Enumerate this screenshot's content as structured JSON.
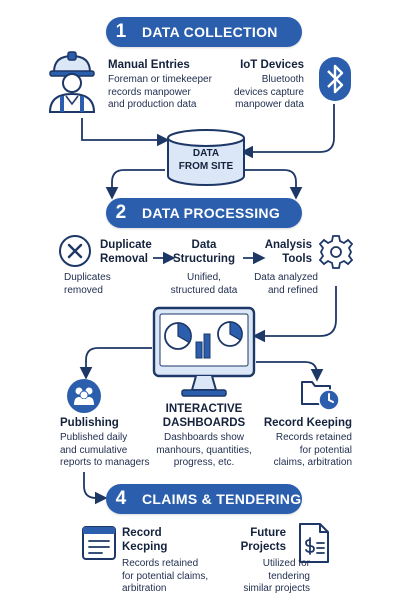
{
  "colors": {
    "primary": "#2b5fae",
    "dark": "#1d3766",
    "light": "#dbe7f7"
  },
  "section1": {
    "number": "1",
    "title": "DATA COLLECTION"
  },
  "manual": {
    "title": "Manual Entries",
    "line1": "Foreman or timekeeper",
    "line2": "records manpower",
    "line3": "and production data",
    "icon": "worker-icon"
  },
  "iot": {
    "title": "IoT Devices",
    "line1": "Bluetooth",
    "line2": "devices capture",
    "line3": "manpower data",
    "icon": "bluetooth-icon"
  },
  "database": {
    "line1": "DATA",
    "line2": "FROM SITE",
    "icon": "database-icon"
  },
  "section2": {
    "number": "2",
    "title": "DATA PROCESSING"
  },
  "duplicate": {
    "title1": "Duplicate",
    "title2": "Removal",
    "desc1": "Duplicates",
    "desc2": "removed",
    "icon": "x-circle-icon"
  },
  "structuring": {
    "title1": "Data",
    "title2": "Structuring",
    "desc1": "Unified,",
    "desc2": "structured data"
  },
  "analysis": {
    "title1": "Analysis",
    "title2": "Tools",
    "desc1": "Data analyzed",
    "desc2": "and refined",
    "icon": "gear-icon"
  },
  "monitor": {
    "icon": "dashboard-monitor-icon"
  },
  "publishing": {
    "title": "Publishing",
    "line1": "Published daily",
    "line2": "and cumulative",
    "line3": "reports to managers",
    "icon": "people-icon"
  },
  "dashboards": {
    "title1": "INTERACTIVE",
    "title2": "DASHBOARDS",
    "line1": "Dashboards show",
    "line2": "manhours, quantities,",
    "line3": "progress, etc."
  },
  "recordKeeping": {
    "title": "Record Keeping",
    "line1": "Records retained",
    "line2": "for potential",
    "line3": "claims, arbitration",
    "icon": "folder-clock-icon"
  },
  "section4": {
    "number": "4",
    "title": "CLAIMS & TENDERING"
  },
  "recordKecping": {
    "title1": "Record",
    "title2": "Kecping",
    "line1": "Records retained",
    "line2": "for potential claims,",
    "line3": "arbitration",
    "icon": "document-icon"
  },
  "future": {
    "title1": "Future",
    "title2": "Projects",
    "line1": "Utilized for",
    "line2": "tendering",
    "line3": "similar projects",
    "icon": "invoice-icon"
  }
}
